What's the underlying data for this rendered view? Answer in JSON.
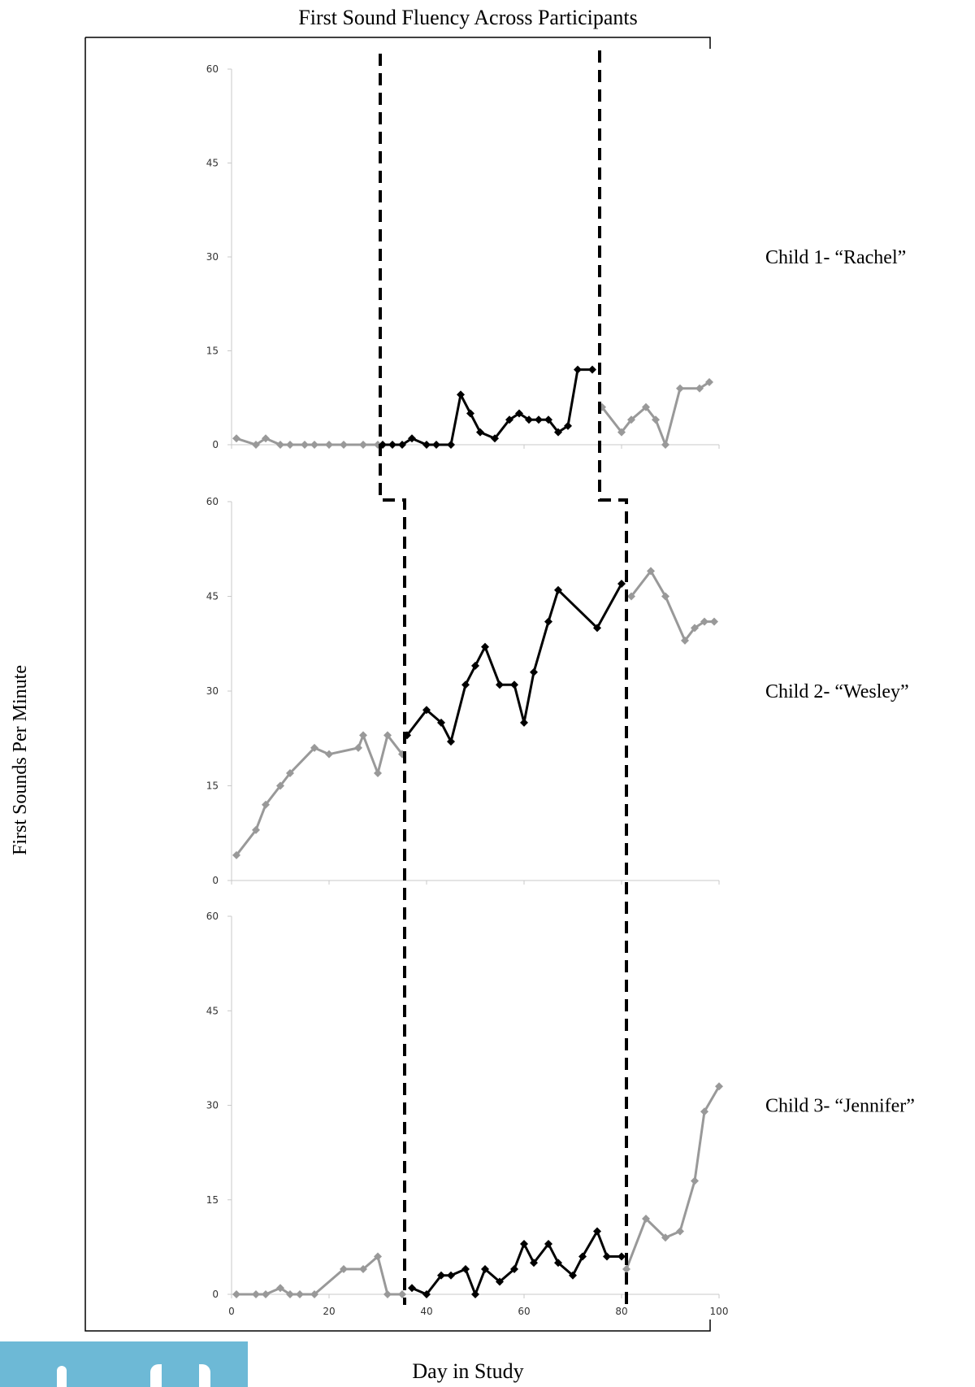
{
  "title": "First Sound Fluency Across Participants",
  "ylabel": "First Sounds Per Minute",
  "xlabel": "Day in Study",
  "chart_data": {
    "type": "line",
    "title": "First Sound Fluency Across Participants",
    "xlabel": "Day in Study",
    "ylabel": "First Sounds Per Minute",
    "xlim": [
      0,
      100
    ],
    "ylim": [
      0,
      60
    ],
    "x_ticks": [
      0,
      20,
      40,
      60,
      80,
      100
    ],
    "y_ticks": [
      0,
      15,
      30,
      45,
      60
    ],
    "grid": false,
    "colors": {
      "baseline": "#999999",
      "intervention": "#000000",
      "phase_line": "#000000"
    },
    "panels": [
      {
        "label": "Child 1- “Rachel”",
        "phase_change_days": [
          30.5,
          75.5
        ],
        "series": [
          {
            "phase": "baseline",
            "x": [
              1,
              5,
              7,
              10,
              12,
              15,
              17,
              20,
              23,
              27,
              30
            ],
            "y": [
              1,
              0,
              1,
              0,
              0,
              0,
              0,
              0,
              0,
              0,
              0
            ]
          },
          {
            "phase": "intervention",
            "x": [
              31,
              33,
              35,
              37,
              40,
              42,
              45,
              47,
              49,
              51,
              54,
              57,
              59,
              61,
              63,
              65,
              67,
              69,
              71,
              74
            ],
            "y": [
              0,
              0,
              0,
              1,
              0,
              0,
              0,
              8,
              5,
              2,
              1,
              4,
              5,
              4,
              4,
              4,
              2,
              3,
              12,
              12
            ]
          },
          {
            "phase": "maintenance",
            "x": [
              76,
              80,
              82,
              85,
              87,
              89,
              92,
              96,
              98
            ],
            "y": [
              6,
              2,
              4,
              6,
              4,
              0,
              9,
              9,
              10
            ]
          }
        ]
      },
      {
        "label": "Child 2- “Wesley”",
        "phase_change_days": [
          35.5,
          81
        ],
        "series": [
          {
            "phase": "baseline",
            "x": [
              1,
              5,
              7,
              10,
              12,
              17,
              20,
              26,
              27,
              30,
              32,
              35
            ],
            "y": [
              4,
              8,
              12,
              15,
              17,
              21,
              20,
              21,
              23,
              17,
              23,
              20
            ]
          },
          {
            "phase": "intervention",
            "x": [
              36,
              40,
              43,
              45,
              48,
              50,
              52,
              55,
              58,
              60,
              62,
              65,
              67,
              75,
              80
            ],
            "y": [
              23,
              27,
              25,
              22,
              31,
              34,
              37,
              31,
              31,
              25,
              33,
              41,
              46,
              40,
              47
            ]
          },
          {
            "phase": "maintenance",
            "x": [
              82,
              86,
              89,
              93,
              95,
              97,
              99
            ],
            "y": [
              45,
              49,
              45,
              38,
              40,
              41,
              41
            ]
          }
        ]
      },
      {
        "label": "Child 3- “Jennifer”",
        "phase_change_days": [
          35.5,
          81
        ],
        "series": [
          {
            "phase": "baseline",
            "x": [
              1,
              5,
              7,
              10,
              12,
              14,
              17,
              23,
              27,
              30,
              32,
              35
            ],
            "y": [
              0,
              0,
              0,
              1,
              0,
              0,
              0,
              4,
              4,
              6,
              0,
              0
            ]
          },
          {
            "phase": "intervention",
            "x": [
              37,
              40,
              43,
              45,
              48,
              50,
              52,
              55,
              58,
              60,
              62,
              65,
              67,
              70,
              72,
              75,
              77,
              80
            ],
            "y": [
              1,
              0,
              3,
              3,
              4,
              0,
              4,
              2,
              4,
              8,
              5,
              8,
              5,
              3,
              6,
              10,
              6,
              6
            ]
          },
          {
            "phase": "maintenance",
            "x": [
              81,
              85,
              89,
              92,
              95,
              97,
              100
            ],
            "y": [
              4,
              12,
              9,
              10,
              18,
              29,
              33
            ]
          }
        ]
      }
    ]
  }
}
